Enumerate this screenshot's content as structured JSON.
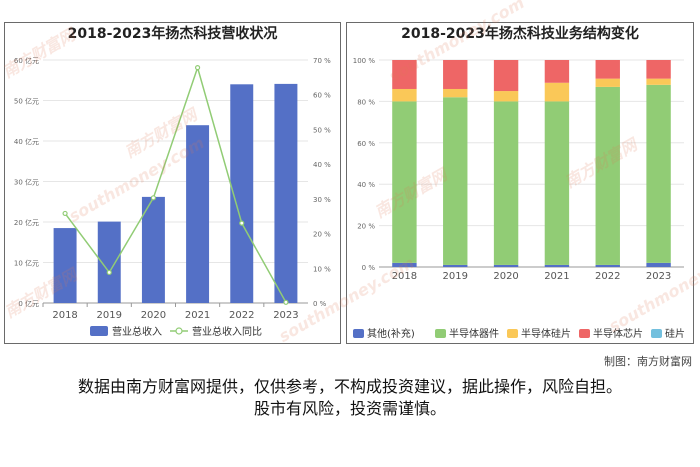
{
  "page": {
    "credit": "制图：南方财富网",
    "disclaimer_line1": "数据由南方财富网提供，仅供参考，不构成投资建议，据此操作，风险自担。",
    "disclaimer_line2": "股市有风险，投资需谨慎。",
    "watermark_text": "南方财富网",
    "watermark_url": "southmoney.com"
  },
  "chart_data": [
    {
      "type": "bar",
      "title": "2018-2023年扬杰科技营收状况",
      "categories": [
        "2018",
        "2019",
        "2020",
        "2021",
        "2022",
        "2023"
      ],
      "series": [
        {
          "name": "营业总收入",
          "type": "bar",
          "axis": "left",
          "values": [
            18.5,
            20.1,
            26.2,
            43.9,
            54.0,
            54.1
          ],
          "color": "#5470c6"
        },
        {
          "name": "营业总收入同比",
          "type": "line",
          "axis": "right",
          "values": [
            25.8,
            8.8,
            30.3,
            67.8,
            23.0,
            0.2
          ],
          "color": "#91cc75"
        }
      ],
      "y_left": {
        "min": 0,
        "max": 60,
        "step": 10,
        "tick_labels": [
          "0 亿元",
          "10 亿元",
          "20 亿元",
          "30 亿元",
          "40 亿元",
          "50 亿元",
          "60 亿元"
        ]
      },
      "y_right": {
        "min": 0,
        "max": 70,
        "step": 10,
        "tick_labels": [
          "0 %",
          "10 %",
          "20 %",
          "30 %",
          "40 %",
          "50 %",
          "60 %",
          "70 %"
        ]
      },
      "grid": true,
      "legend_position": "bottom"
    },
    {
      "type": "bar",
      "stacked": true,
      "title": "2018-2023年扬杰科技业务结构变化",
      "categories": [
        "2018",
        "2019",
        "2020",
        "2021",
        "2022",
        "2023"
      ],
      "series": [
        {
          "name": "其他(补充)",
          "values": [
            2,
            1,
            1,
            1,
            1,
            2
          ],
          "color": "#5470c6"
        },
        {
          "name": "半导体器件",
          "values": [
            78,
            81,
            79,
            79,
            86,
            86
          ],
          "color": "#91cc75"
        },
        {
          "name": "半导体硅片",
          "values": [
            6,
            4,
            5,
            9,
            4,
            3
          ],
          "color": "#fac858"
        },
        {
          "name": "半导体芯片",
          "values": [
            14,
            14,
            15,
            11,
            9,
            9
          ],
          "color": "#ee6666"
        },
        {
          "name": "硅片",
          "values": [
            0,
            0,
            0,
            0,
            0,
            0
          ],
          "color": "#73c0de"
        }
      ],
      "y_axis": {
        "min": 0,
        "max": 100,
        "step": 20,
        "tick_labels": [
          "0 %",
          "20 %",
          "40 %",
          "60 %",
          "80 %",
          "100 %"
        ]
      },
      "grid": true,
      "legend_position": "bottom"
    }
  ]
}
